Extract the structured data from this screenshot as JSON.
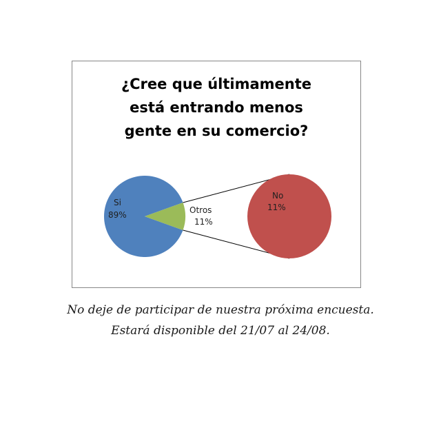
{
  "chart_data": {
    "type": "pie",
    "subtype": "pie-of-pie",
    "title": [
      "¿Cree que últimamente",
      "está entrando menos",
      "gente en su comercio?"
    ],
    "slices": [
      {
        "label": "Si",
        "value": 89,
        "value_label": "89%",
        "color": "#4f81bd"
      },
      {
        "label": "Otros",
        "value": 11,
        "value_label": "11%",
        "color": "#9bbb59"
      }
    ],
    "secondary_pie": [
      {
        "label": "No",
        "value": 11,
        "value_label": "11%",
        "color": "#c0504d"
      }
    ],
    "legend": "none"
  },
  "footer": {
    "line1": "No deje de participar de nuestra próxima encuesta.",
    "line2": "Estará disponible del 21/07 al 24/08."
  }
}
